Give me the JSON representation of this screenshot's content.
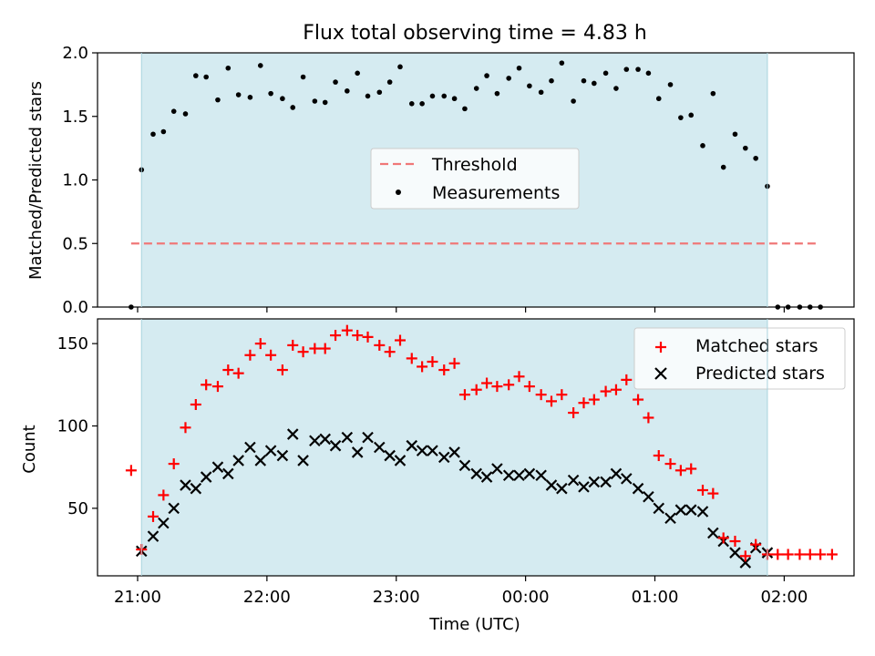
{
  "chart_data": [
    {
      "type": "scatter",
      "title": "Flux total observing time = 4.83 h",
      "xlabel": "",
      "ylabel": "Matched/Predicted stars",
      "x_unit": "hours after 21:00 UTC",
      "xlim": [
        -0.31,
        5.54
      ],
      "ylim": [
        0,
        2.0
      ],
      "yticks": [
        "0.0",
        "0.5",
        "1.0",
        "1.5",
        "2.0"
      ],
      "shaded_span": [
        0.03,
        4.87
      ],
      "shade_color": "#d5ebf1",
      "threshold": {
        "value": 0.5,
        "x_range": [
          -0.05,
          5.25
        ],
        "color": "#f07878"
      },
      "legend": {
        "position": "center",
        "threshold_label": "Threshold",
        "measurements_label": "Measurements"
      },
      "series": [
        {
          "name": "Measurements",
          "color": "#000000",
          "marker": "dot",
          "points": [
            [
              -0.05,
              0.0
            ],
            [
              0.03,
              1.08
            ],
            [
              0.12,
              1.36
            ],
            [
              0.2,
              1.38
            ],
            [
              0.28,
              1.54
            ],
            [
              0.37,
              1.52
            ],
            [
              0.45,
              1.82
            ],
            [
              0.53,
              1.81
            ],
            [
              0.62,
              1.63
            ],
            [
              0.7,
              1.88
            ],
            [
              0.78,
              1.67
            ],
            [
              0.87,
              1.65
            ],
            [
              0.95,
              1.9
            ],
            [
              1.03,
              1.68
            ],
            [
              1.12,
              1.64
            ],
            [
              1.2,
              1.57
            ],
            [
              1.28,
              1.81
            ],
            [
              1.37,
              1.62
            ],
            [
              1.45,
              1.61
            ],
            [
              1.53,
              1.77
            ],
            [
              1.62,
              1.7
            ],
            [
              1.7,
              1.84
            ],
            [
              1.78,
              1.66
            ],
            [
              1.87,
              1.69
            ],
            [
              1.95,
              1.77
            ],
            [
              2.03,
              1.89
            ],
            [
              2.12,
              1.6
            ],
            [
              2.2,
              1.6
            ],
            [
              2.28,
              1.66
            ],
            [
              2.37,
              1.66
            ],
            [
              2.45,
              1.64
            ],
            [
              2.53,
              1.56
            ],
            [
              2.62,
              1.72
            ],
            [
              2.7,
              1.82
            ],
            [
              2.78,
              1.68
            ],
            [
              2.87,
              1.8
            ],
            [
              2.95,
              1.88
            ],
            [
              3.03,
              1.74
            ],
            [
              3.12,
              1.69
            ],
            [
              3.2,
              1.78
            ],
            [
              3.28,
              1.92
            ],
            [
              3.37,
              1.62
            ],
            [
              3.45,
              1.78
            ],
            [
              3.53,
              1.76
            ],
            [
              3.62,
              1.84
            ],
            [
              3.7,
              1.72
            ],
            [
              3.78,
              1.87
            ],
            [
              3.87,
              1.87
            ],
            [
              3.95,
              1.84
            ],
            [
              4.03,
              1.64
            ],
            [
              4.12,
              1.75
            ],
            [
              4.2,
              1.49
            ],
            [
              4.28,
              1.51
            ],
            [
              4.37,
              1.27
            ],
            [
              4.45,
              1.68
            ],
            [
              4.53,
              1.1
            ],
            [
              4.62,
              1.36
            ],
            [
              4.7,
              1.25
            ],
            [
              4.78,
              1.17
            ],
            [
              4.87,
              0.95
            ],
            [
              4.95,
              0.0
            ],
            [
              5.03,
              0.0
            ],
            [
              5.12,
              0.0
            ],
            [
              5.2,
              0.0
            ],
            [
              5.28,
              0.0
            ]
          ]
        }
      ]
    },
    {
      "type": "scatter",
      "title": "",
      "xlabel": "Time (UTC)",
      "ylabel": "Count",
      "x_unit": "hours after 21:00 UTC",
      "xlim": [
        -0.31,
        5.54
      ],
      "ylim": [
        9,
        165
      ],
      "yticks": [
        "50",
        "100",
        "150"
      ],
      "xticks": [
        "21:00",
        "22:00",
        "23:00",
        "00:00",
        "01:00",
        "02:00"
      ],
      "shaded_span": [
        0.03,
        4.87
      ],
      "legend": {
        "position": "top-right",
        "matched_label": "Matched stars",
        "predicted_label": "Predicted stars"
      },
      "series": [
        {
          "name": "Matched stars",
          "color": "#ff0000",
          "marker": "plus",
          "points": [
            [
              -0.05,
              73
            ],
            [
              0.03,
              25
            ],
            [
              0.12,
              45
            ],
            [
              0.2,
              58
            ],
            [
              0.28,
              77
            ],
            [
              0.37,
              99
            ],
            [
              0.45,
              113
            ],
            [
              0.53,
              125
            ],
            [
              0.62,
              124
            ],
            [
              0.7,
              134
            ],
            [
              0.78,
              132
            ],
            [
              0.87,
              143
            ],
            [
              0.95,
              150
            ],
            [
              1.03,
              143
            ],
            [
              1.12,
              134
            ],
            [
              1.2,
              149
            ],
            [
              1.28,
              145
            ],
            [
              1.37,
              147
            ],
            [
              1.45,
              147
            ],
            [
              1.53,
              155
            ],
            [
              1.62,
              158
            ],
            [
              1.7,
              155
            ],
            [
              1.78,
              154
            ],
            [
              1.87,
              149
            ],
            [
              1.95,
              145
            ],
            [
              2.03,
              152
            ],
            [
              2.12,
              141
            ],
            [
              2.2,
              136
            ],
            [
              2.28,
              139
            ],
            [
              2.37,
              134
            ],
            [
              2.45,
              138
            ],
            [
              2.53,
              119
            ],
            [
              2.62,
              122
            ],
            [
              2.7,
              126
            ],
            [
              2.78,
              124
            ],
            [
              2.87,
              125
            ],
            [
              2.95,
              130
            ],
            [
              3.03,
              124
            ],
            [
              3.12,
              119
            ],
            [
              3.2,
              115
            ],
            [
              3.28,
              119
            ],
            [
              3.37,
              108
            ],
            [
              3.45,
              114
            ],
            [
              3.53,
              116
            ],
            [
              3.62,
              121
            ],
            [
              3.7,
              122
            ],
            [
              3.78,
              128
            ],
            [
              3.87,
              116
            ],
            [
              3.95,
              105
            ],
            [
              4.03,
              82
            ],
            [
              4.12,
              77
            ],
            [
              4.2,
              73
            ],
            [
              4.28,
              74
            ],
            [
              4.37,
              61
            ],
            [
              4.45,
              59
            ],
            [
              4.53,
              32
            ],
            [
              4.62,
              30
            ],
            [
              4.7,
              21
            ],
            [
              4.78,
              28
            ],
            [
              4.87,
              22
            ],
            [
              4.95,
              22
            ],
            [
              5.03,
              22
            ],
            [
              5.12,
              22
            ],
            [
              5.2,
              22
            ],
            [
              5.28,
              22
            ],
            [
              5.37,
              22
            ]
          ]
        },
        {
          "name": "Predicted stars",
          "color": "#000000",
          "marker": "x",
          "points": [
            [
              0.03,
              24
            ],
            [
              0.12,
              33
            ],
            [
              0.2,
              41
            ],
            [
              0.28,
              50
            ],
            [
              0.37,
              64
            ],
            [
              0.45,
              62
            ],
            [
              0.53,
              69
            ],
            [
              0.62,
              75
            ],
            [
              0.7,
              71
            ],
            [
              0.78,
              79
            ],
            [
              0.87,
              87
            ],
            [
              0.95,
              79
            ],
            [
              1.03,
              85
            ],
            [
              1.12,
              82
            ],
            [
              1.2,
              95
            ],
            [
              1.28,
              79
            ],
            [
              1.37,
              91
            ],
            [
              1.45,
              92
            ],
            [
              1.53,
              88
            ],
            [
              1.62,
              93
            ],
            [
              1.7,
              84
            ],
            [
              1.78,
              93
            ],
            [
              1.87,
              87
            ],
            [
              1.95,
              82
            ],
            [
              2.03,
              79
            ],
            [
              2.12,
              88
            ],
            [
              2.2,
              85
            ],
            [
              2.28,
              85
            ],
            [
              2.37,
              81
            ],
            [
              2.45,
              84
            ],
            [
              2.53,
              76
            ],
            [
              2.62,
              71
            ],
            [
              2.7,
              69
            ],
            [
              2.78,
              74
            ],
            [
              2.87,
              70
            ],
            [
              2.95,
              70
            ],
            [
              3.03,
              71
            ],
            [
              3.12,
              70
            ],
            [
              3.2,
              64
            ],
            [
              3.28,
              62
            ],
            [
              3.37,
              67
            ],
            [
              3.45,
              63
            ],
            [
              3.53,
              66
            ],
            [
              3.62,
              66
            ],
            [
              3.7,
              71
            ],
            [
              3.78,
              68
            ],
            [
              3.87,
              62
            ],
            [
              3.95,
              57
            ],
            [
              4.03,
              50
            ],
            [
              4.12,
              44
            ],
            [
              4.2,
              49
            ],
            [
              4.28,
              49
            ],
            [
              4.37,
              48
            ],
            [
              4.45,
              35
            ],
            [
              4.53,
              30
            ],
            [
              4.62,
              23
            ],
            [
              4.7,
              17
            ],
            [
              4.78,
              26
            ],
            [
              4.87,
              23
            ]
          ]
        }
      ]
    }
  ]
}
